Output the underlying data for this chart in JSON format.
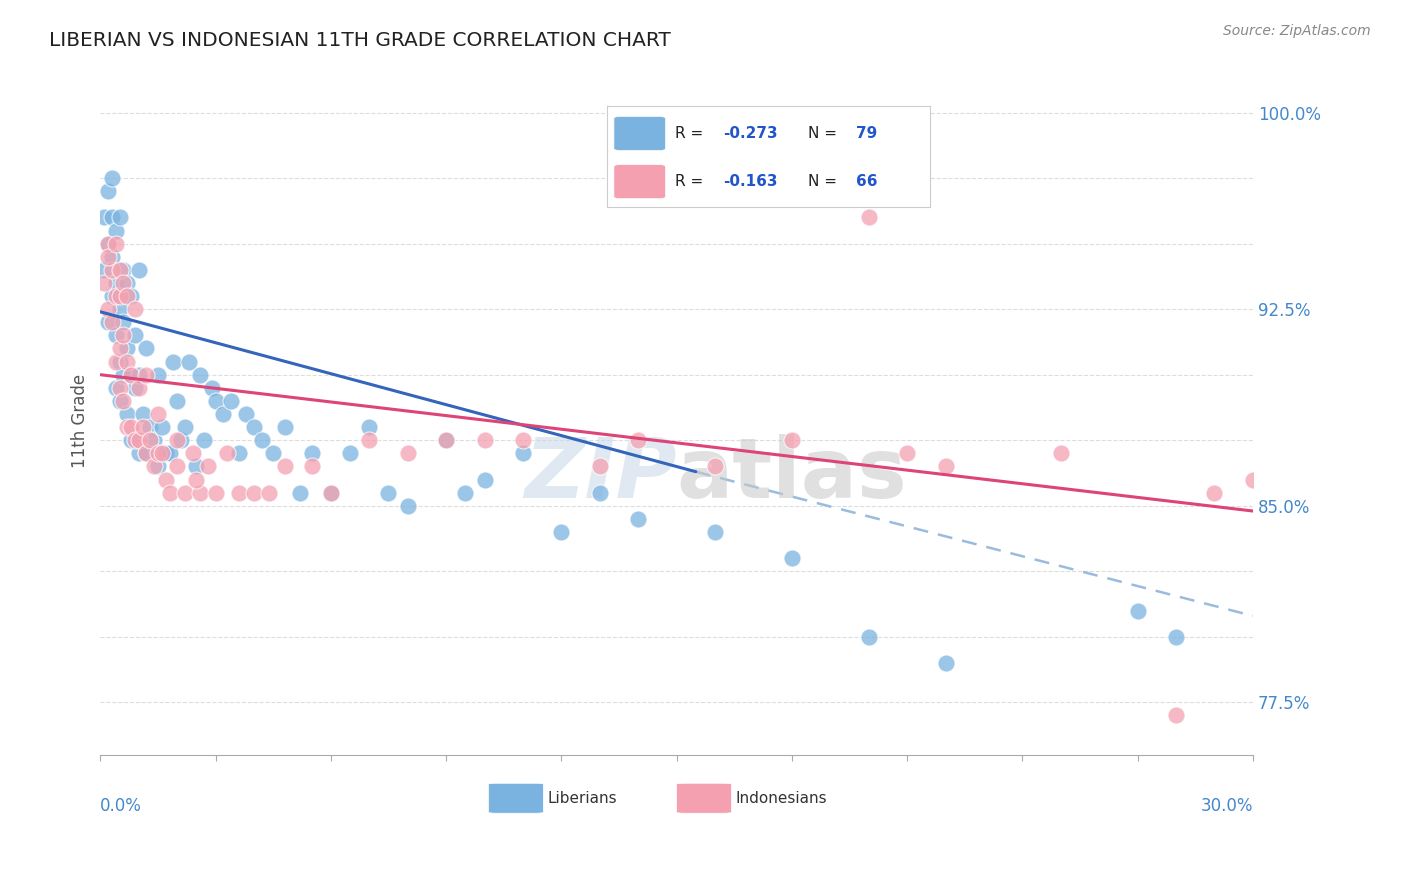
{
  "title": "LIBERIAN VS INDONESIAN 11TH GRADE CORRELATION CHART",
  "source_text": "Source: ZipAtlas.com",
  "ylabel": "11th Grade",
  "xlim": [
    0.0,
    0.3
  ],
  "ylim": [
    0.755,
    1.01
  ],
  "liberian_color": "#7ab3e0",
  "indonesian_color": "#f4a0b0",
  "liberian_line_color": "#3366bb",
  "indonesian_line_color": "#dd4477",
  "dash_color": "#99bbdd",
  "watermark_text": "ZIPatlas",
  "legend_R_lib": "R = -0.273",
  "legend_N_lib": "N = 79",
  "legend_R_ind": "R = -0.163",
  "legend_N_ind": "N = 66",
  "liberian_x": [
    0.001,
    0.001,
    0.002,
    0.002,
    0.002,
    0.003,
    0.003,
    0.003,
    0.003,
    0.004,
    0.004,
    0.004,
    0.004,
    0.005,
    0.005,
    0.005,
    0.005,
    0.006,
    0.006,
    0.006,
    0.007,
    0.007,
    0.007,
    0.008,
    0.008,
    0.008,
    0.009,
    0.009,
    0.01,
    0.01,
    0.01,
    0.011,
    0.012,
    0.012,
    0.013,
    0.014,
    0.015,
    0.015,
    0.016,
    0.017,
    0.018,
    0.019,
    0.02,
    0.021,
    0.022,
    0.023,
    0.025,
    0.026,
    0.027,
    0.029,
    0.03,
    0.032,
    0.034,
    0.036,
    0.038,
    0.04,
    0.042,
    0.045,
    0.048,
    0.052,
    0.055,
    0.06,
    0.065,
    0.07,
    0.075,
    0.08,
    0.09,
    0.095,
    0.1,
    0.11,
    0.12,
    0.13,
    0.14,
    0.16,
    0.18,
    0.2,
    0.22,
    0.27,
    0.28
  ],
  "liberian_y": [
    0.94,
    0.96,
    0.92,
    0.95,
    0.97,
    0.93,
    0.945,
    0.96,
    0.975,
    0.895,
    0.915,
    0.935,
    0.955,
    0.89,
    0.905,
    0.925,
    0.96,
    0.9,
    0.92,
    0.94,
    0.885,
    0.91,
    0.935,
    0.875,
    0.9,
    0.93,
    0.895,
    0.915,
    0.87,
    0.9,
    0.94,
    0.885,
    0.87,
    0.91,
    0.88,
    0.875,
    0.865,
    0.9,
    0.88,
    0.87,
    0.87,
    0.905,
    0.89,
    0.875,
    0.88,
    0.905,
    0.865,
    0.9,
    0.875,
    0.895,
    0.89,
    0.885,
    0.89,
    0.87,
    0.885,
    0.88,
    0.875,
    0.87,
    0.88,
    0.855,
    0.87,
    0.855,
    0.87,
    0.88,
    0.855,
    0.85,
    0.875,
    0.855,
    0.86,
    0.87,
    0.84,
    0.855,
    0.845,
    0.84,
    0.83,
    0.8,
    0.79,
    0.81,
    0.8
  ],
  "indonesian_x": [
    0.001,
    0.002,
    0.002,
    0.003,
    0.003,
    0.004,
    0.004,
    0.005,
    0.005,
    0.005,
    0.006,
    0.006,
    0.007,
    0.007,
    0.008,
    0.008,
    0.009,
    0.01,
    0.01,
    0.011,
    0.012,
    0.013,
    0.014,
    0.015,
    0.016,
    0.017,
    0.018,
    0.02,
    0.022,
    0.024,
    0.026,
    0.028,
    0.03,
    0.033,
    0.036,
    0.04,
    0.044,
    0.048,
    0.055,
    0.06,
    0.07,
    0.08,
    0.09,
    0.1,
    0.11,
    0.13,
    0.14,
    0.16,
    0.18,
    0.2,
    0.21,
    0.22,
    0.25,
    0.28,
    0.29,
    0.3,
    0.002,
    0.004,
    0.005,
    0.006,
    0.007,
    0.009,
    0.012,
    0.015,
    0.02,
    0.025
  ],
  "indonesian_y": [
    0.935,
    0.925,
    0.95,
    0.92,
    0.94,
    0.905,
    0.93,
    0.895,
    0.91,
    0.93,
    0.89,
    0.915,
    0.88,
    0.905,
    0.88,
    0.9,
    0.875,
    0.875,
    0.895,
    0.88,
    0.87,
    0.875,
    0.865,
    0.87,
    0.87,
    0.86,
    0.855,
    0.865,
    0.855,
    0.87,
    0.855,
    0.865,
    0.855,
    0.87,
    0.855,
    0.855,
    0.855,
    0.865,
    0.865,
    0.855,
    0.875,
    0.87,
    0.875,
    0.875,
    0.875,
    0.865,
    0.875,
    0.865,
    0.875,
    0.96,
    0.87,
    0.865,
    0.87,
    0.77,
    0.855,
    0.86,
    0.945,
    0.95,
    0.94,
    0.935,
    0.93,
    0.925,
    0.9,
    0.885,
    0.875,
    0.86
  ],
  "lib_line_x0": 0.0,
  "lib_line_x1": 0.155,
  "lib_line_y0": 0.924,
  "lib_line_y1": 0.863,
  "dash_line_x0": 0.155,
  "dash_line_x1": 0.3,
  "dash_line_y0": 0.863,
  "dash_line_y1": 0.808,
  "ind_line_x0": 0.0,
  "ind_line_x1": 0.3,
  "ind_line_y0": 0.9,
  "ind_line_y1": 0.848
}
